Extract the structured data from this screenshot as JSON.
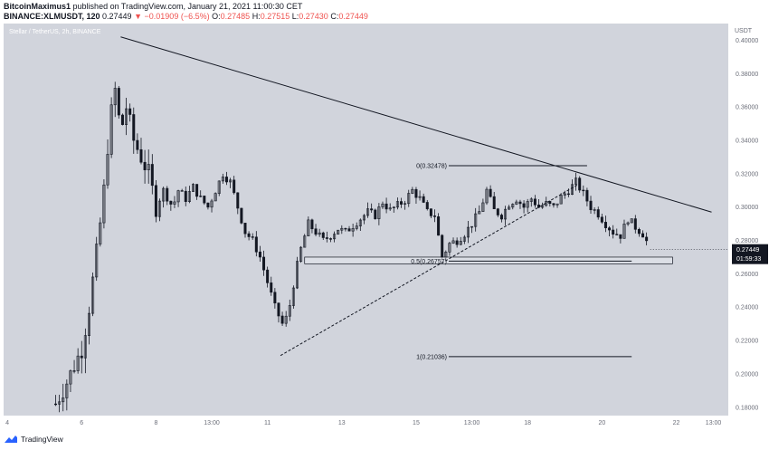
{
  "header": {
    "author": "BitcoinMaximus1",
    "published": "published on TradingView.com, January 21, 2021 11:00:30 CET",
    "symbol": "BINANCE:XLMUSDT, 120",
    "last": "0.27449",
    "change": "−0.01909 (−6.5%)",
    "o_label": "O:",
    "o": "0.27485",
    "h_label": "H:",
    "h": "0.27515",
    "l_label": "L:",
    "l": "0.27430",
    "c_label": "C:",
    "c": "0.27449"
  },
  "pane": {
    "symbol_line": "Stellar / TetherUS, 2h, BINANCE",
    "currency": "USDT"
  },
  "price_tag": {
    "value": "0.27449",
    "countdown": "01:59:33"
  },
  "footer": {
    "brand": "TradingView"
  },
  "colors": {
    "background": "#d1d4dc",
    "candle": "#131722",
    "tag_bg": "#131722",
    "tag_text": "#ffffff",
    "axis_text": "#6a6d78"
  },
  "chart_data": {
    "type": "candlestick",
    "ylim": [
      0.175,
      0.41
    ],
    "xlim": [
      3.9,
      23.4
    ],
    "y_ticks": [
      "0.40000",
      "0.38000",
      "0.36000",
      "0.34000",
      "0.32000",
      "0.30000",
      "0.28000",
      "0.26000",
      "0.24000",
      "0.22000",
      "0.20000",
      "0.18000"
    ],
    "x_ticks": [
      {
        "label": "4",
        "x": 4
      },
      {
        "label": "6",
        "x": 6
      },
      {
        "label": "8",
        "x": 8
      },
      {
        "label": "13:00",
        "x": 9.5
      },
      {
        "label": "11",
        "x": 11
      },
      {
        "label": "13",
        "x": 13
      },
      {
        "label": "15",
        "x": 15
      },
      {
        "label": "13:00",
        "x": 16.5
      },
      {
        "label": "18",
        "x": 18
      },
      {
        "label": "20",
        "x": 20
      },
      {
        "label": "22",
        "x": 22
      },
      {
        "label": "13:00",
        "x": 23.0
      }
    ],
    "path": [
      [
        5.3,
        0.182
      ],
      [
        5.6,
        0.195
      ],
      [
        6.0,
        0.215
      ],
      [
        6.2,
        0.24
      ],
      [
        6.45,
        0.28
      ],
      [
        6.6,
        0.31
      ],
      [
        6.75,
        0.35
      ],
      [
        6.9,
        0.37
      ],
      [
        7.05,
        0.345
      ],
      [
        7.2,
        0.36
      ],
      [
        7.4,
        0.34
      ],
      [
        7.6,
        0.33
      ],
      [
        7.8,
        0.32
      ],
      [
        8.0,
        0.3
      ],
      [
        8.2,
        0.31
      ],
      [
        8.45,
        0.3
      ],
      [
        8.6,
        0.31
      ],
      [
        8.8,
        0.305
      ],
      [
        9.0,
        0.312
      ],
      [
        9.2,
        0.305
      ],
      [
        9.4,
        0.3
      ],
      [
        9.6,
        0.31
      ],
      [
        9.8,
        0.32
      ],
      [
        10.0,
        0.315
      ],
      [
        10.2,
        0.3
      ],
      [
        10.4,
        0.285
      ],
      [
        10.6,
        0.28
      ],
      [
        10.8,
        0.27
      ],
      [
        11.0,
        0.255
      ],
      [
        11.2,
        0.24
      ],
      [
        11.4,
        0.23
      ],
      [
        11.55,
        0.235
      ],
      [
        11.75,
        0.26
      ],
      [
        11.9,
        0.275
      ],
      [
        12.1,
        0.29
      ],
      [
        12.3,
        0.285
      ],
      [
        12.5,
        0.28
      ],
      [
        12.7,
        0.283
      ],
      [
        12.9,
        0.287
      ],
      [
        13.1,
        0.285
      ],
      [
        13.3,
        0.289
      ],
      [
        13.5,
        0.293
      ],
      [
        13.7,
        0.297
      ],
      [
        13.9,
        0.295
      ],
      [
        14.1,
        0.303
      ],
      [
        14.3,
        0.298
      ],
      [
        14.5,
        0.301
      ],
      [
        14.7,
        0.304
      ],
      [
        14.9,
        0.31
      ],
      [
        15.1,
        0.305
      ],
      [
        15.3,
        0.297
      ],
      [
        15.5,
        0.295
      ],
      [
        15.7,
        0.27
      ],
      [
        15.9,
        0.278
      ],
      [
        16.1,
        0.28
      ],
      [
        16.3,
        0.284
      ],
      [
        16.5,
        0.29
      ],
      [
        16.7,
        0.297
      ],
      [
        16.9,
        0.31
      ],
      [
        17.1,
        0.298
      ],
      [
        17.3,
        0.295
      ],
      [
        17.5,
        0.302
      ],
      [
        17.7,
        0.305
      ],
      [
        17.9,
        0.3
      ],
      [
        18.1,
        0.305
      ],
      [
        18.3,
        0.3
      ],
      [
        18.5,
        0.302
      ],
      [
        18.7,
        0.3
      ],
      [
        18.9,
        0.306
      ],
      [
        19.1,
        0.31
      ],
      [
        19.3,
        0.315
      ],
      [
        19.5,
        0.308
      ],
      [
        19.7,
        0.3
      ],
      [
        19.9,
        0.296
      ],
      [
        20.1,
        0.29
      ],
      [
        20.3,
        0.285
      ],
      [
        20.5,
        0.283
      ],
      [
        20.7,
        0.293
      ],
      [
        20.9,
        0.288
      ],
      [
        21.1,
        0.284
      ],
      [
        21.3,
        0.275
      ]
    ],
    "annotations": {
      "descending_resistance": {
        "from": [
          7.05,
          0.402
        ],
        "to": [
          22.95,
          0.297
        ]
      },
      "ascending_support_dashed": {
        "from": [
          11.35,
          0.211
        ],
        "to": [
          19.4,
          0.314
        ]
      },
      "support_zone": {
        "x_from": 12.0,
        "x_to": 21.9,
        "y_from": 0.266,
        "y_to": 0.27
      },
      "fib_levels": [
        {
          "label": "0(0.32478)",
          "value": 0.32478,
          "x_from": 15.0,
          "x_to": 19.6
        },
        {
          "label": "0.5(0.26757)",
          "value": 0.26757,
          "x_from": 15.0,
          "x_to": 20.8
        },
        {
          "label": "1(0.21036)",
          "value": 0.21036,
          "x_from": 15.0,
          "x_to": 20.8
        }
      ]
    }
  }
}
